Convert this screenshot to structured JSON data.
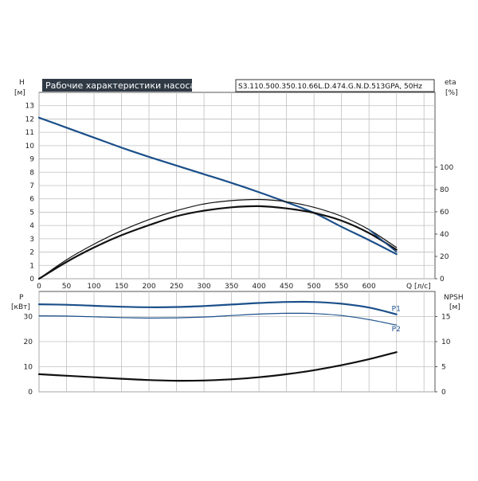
{
  "chart_data": [
    {
      "type": "line",
      "title": "Рабочие характеристики насоса",
      "subtitle": "S3.110.500.350.10.66L.D.474.G.N.D.513GPA, 50Hz",
      "xlabel": "Q [л/с]",
      "ylabel_left": "H",
      "ylabel_left_unit": "[м]",
      "ylabel_right": "eta",
      "ylabel_right_unit": "[%]",
      "x_ticks": [
        0,
        50,
        100,
        150,
        200,
        250,
        300,
        350,
        400,
        450,
        500,
        550,
        600
      ],
      "xlim": [
        0,
        720
      ],
      "ylim_left": [
        0,
        14
      ],
      "y_ticks_left": [
        0,
        1,
        2,
        3,
        4,
        5,
        6,
        7,
        8,
        9,
        10,
        11,
        12,
        13
      ],
      "ylim_right": [
        0,
        167
      ],
      "y_ticks_right": [
        0,
        20,
        40,
        60,
        80,
        100
      ],
      "grid": true,
      "series": [
        {
          "axis": "left",
          "color": "#1b4f8a",
          "x": [
            0,
            50,
            100,
            150,
            200,
            250,
            300,
            350,
            400,
            450,
            500,
            550,
            600,
            650
          ],
          "values": [
            12.1,
            11.35,
            10.6,
            9.85,
            9.15,
            8.5,
            7.85,
            7.2,
            6.5,
            5.75,
            4.95,
            3.9,
            2.9,
            1.85
          ]
        },
        {
          "axis": "right",
          "color": "#111111",
          "x": [
            0,
            50,
            100,
            150,
            200,
            250,
            300,
            350,
            400,
            450,
            500,
            550,
            600,
            650
          ],
          "values": [
            0,
            17,
            31,
            43,
            53,
            61,
            67,
            70,
            71,
            69,
            64,
            56,
            44,
            28
          ]
        },
        {
          "axis": "right",
          "color": "#111111",
          "x": [
            0,
            50,
            100,
            150,
            200,
            250,
            300,
            350,
            400,
            450,
            500,
            550,
            600,
            650
          ],
          "values": [
            0,
            15,
            28,
            39,
            48,
            56,
            61,
            64,
            65,
            63,
            59,
            52,
            41,
            26
          ]
        },
        {
          "axis": "right",
          "color": "#1b4f8a",
          "x": [
            600,
            650
          ],
          "values": [
            44,
            24
          ]
        }
      ]
    },
    {
      "type": "line",
      "xlabel": "",
      "ylabel_left": "P",
      "ylabel_left_unit": "[кВт]",
      "ylabel_right": "NPSH",
      "ylabel_right_unit": "[м]",
      "x_ticks": [],
      "xlim": [
        0,
        720
      ],
      "ylim_left": [
        0,
        40
      ],
      "y_ticks_left": [
        0,
        10,
        20,
        30
      ],
      "ylim_right": [
        0,
        20
      ],
      "y_ticks_right": [
        0,
        5,
        10,
        15
      ],
      "grid": true,
      "series": [
        {
          "name": "P1",
          "axis": "left",
          "color": "#1b4f8a",
          "x": [
            0,
            50,
            100,
            150,
            200,
            250,
            300,
            350,
            400,
            450,
            500,
            550,
            600,
            650
          ],
          "values": [
            34.9,
            34.7,
            34.3,
            33.9,
            33.7,
            33.8,
            34.2,
            34.8,
            35.4,
            35.8,
            35.8,
            35.1,
            33.6,
            30.9
          ]
        },
        {
          "name": "P2",
          "axis": "left",
          "color": "#1b4f8a",
          "x": [
            0,
            50,
            100,
            150,
            200,
            250,
            300,
            350,
            400,
            450,
            500,
            550,
            600,
            650
          ],
          "values": [
            30.3,
            30.2,
            29.9,
            29.6,
            29.4,
            29.5,
            29.8,
            30.4,
            31.0,
            31.3,
            31.2,
            30.4,
            28.8,
            26.6
          ]
        },
        {
          "axis": "right",
          "color": "#111111",
          "x": [
            0,
            50,
            100,
            150,
            200,
            250,
            300,
            350,
            400,
            450,
            500,
            550,
            600,
            650
          ],
          "values": [
            3.5,
            3.2,
            2.9,
            2.6,
            2.35,
            2.2,
            2.25,
            2.5,
            2.9,
            3.5,
            4.3,
            5.3,
            6.5,
            7.9
          ]
        }
      ]
    }
  ]
}
